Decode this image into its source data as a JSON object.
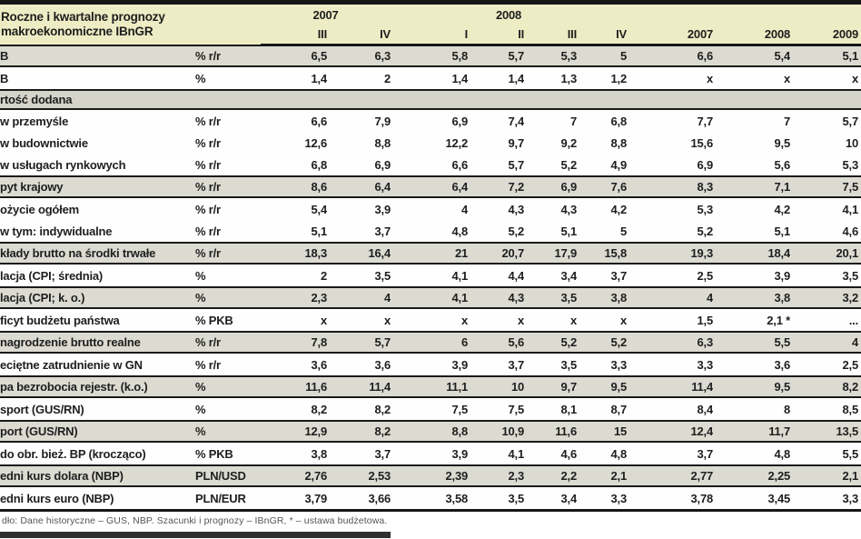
{
  "table": {
    "title_line1": "Roczne i kwartalne prognozy",
    "title_line2": "makroekonomiczne IBnGR",
    "col_groups": [
      {
        "label": "2007",
        "span": 2
      },
      {
        "label": "2008",
        "span": 4
      }
    ],
    "quarter_cols": [
      "III",
      "IV",
      "I",
      "II",
      "III",
      "IV"
    ],
    "year_cols": [
      "2007",
      "2008",
      "2009"
    ],
    "rows": [
      {
        "label": "B",
        "unit": "% r/r",
        "shade": "gray",
        "values": [
          "6,5",
          "6,3",
          "5,8",
          "5,7",
          "5,3",
          "5",
          "6,6",
          "5,4",
          "5,1"
        ]
      },
      {
        "label": "B",
        "unit": "%",
        "shade": "white",
        "values": [
          "1,4",
          "2",
          "1,4",
          "1,4",
          "1,3",
          "1,2",
          "x",
          "x",
          "x"
        ]
      },
      {
        "label": "rtość dodana",
        "type": "section"
      },
      {
        "label": "w przemyśle",
        "unit": "% r/r",
        "shade": "white",
        "values": [
          "6,6",
          "7,9",
          "6,9",
          "7,4",
          "7",
          "6,8",
          "7,7",
          "7",
          "5,7"
        ]
      },
      {
        "label": "w budownictwie",
        "unit": "% r/r",
        "shade": "white",
        "values": [
          "12,6",
          "8,8",
          "12,2",
          "9,7",
          "9,2",
          "8,8",
          "15,6",
          "9,5",
          "10"
        ]
      },
      {
        "label": "w usługach rynkowych",
        "unit": "% r/r",
        "shade": "white",
        "values": [
          "6,8",
          "6,9",
          "6,6",
          "5,7",
          "5,2",
          "4,9",
          "6,9",
          "5,6",
          "5,3"
        ]
      },
      {
        "label": "pyt krajowy",
        "unit": "% r/r",
        "shade": "gray",
        "values": [
          "8,6",
          "6,4",
          "6,4",
          "7,2",
          "6,9",
          "7,6",
          "8,3",
          "7,1",
          "7,5"
        ]
      },
      {
        "label": "ożycie ogółem",
        "unit": "% r/r",
        "shade": "white",
        "values": [
          "5,4",
          "3,9",
          "4",
          "4,3",
          "4,3",
          "4,2",
          "5,3",
          "4,2",
          "4,1"
        ]
      },
      {
        "label": "w tym: indywidualne",
        "unit": "% r/r",
        "shade": "white",
        "values": [
          "5,1",
          "3,7",
          "4,8",
          "5,2",
          "5,1",
          "5",
          "5,2",
          "5,1",
          "4,6"
        ]
      },
      {
        "label": "kłady brutto na środki trwałe",
        "unit": "% r/r",
        "shade": "gray",
        "values": [
          "18,3",
          "16,4",
          "21",
          "20,7",
          "17,9",
          "15,8",
          "19,3",
          "18,4",
          "20,1"
        ]
      },
      {
        "label": "lacja (CPI; średnia)",
        "unit": "%",
        "shade": "white",
        "values": [
          "2",
          "3,5",
          "4,1",
          "4,4",
          "3,4",
          "3,7",
          "2,5",
          "3,9",
          "3,5"
        ]
      },
      {
        "label": "lacja (CPI; k. o.)",
        "unit": "%",
        "shade": "gray",
        "values": [
          "2,3",
          "4",
          "4,1",
          "4,3",
          "3,5",
          "3,8",
          "4",
          "3,8",
          "3,2"
        ]
      },
      {
        "label": "ficyt budżetu państwa",
        "unit": "% PKB",
        "shade": "white",
        "values": [
          "x",
          "x",
          "x",
          "x",
          "x",
          "x",
          "1,5",
          "2,1 *",
          "..."
        ]
      },
      {
        "label": "nagrodzenie brutto realne",
        "unit": "% r/r",
        "shade": "gray",
        "values": [
          "7,8",
          "5,7",
          "6",
          "5,6",
          "5,2",
          "5,2",
          "6,3",
          "5,5",
          "4"
        ]
      },
      {
        "label": "eciętne zatrudnienie w GN",
        "unit": "% r/r",
        "shade": "white",
        "values": [
          "3,6",
          "3,6",
          "3,9",
          "3,7",
          "3,5",
          "3,3",
          "3,3",
          "3,6",
          "2,5"
        ]
      },
      {
        "label": "pa bezrobocia rejestr. (k.o.)",
        "unit": "%",
        "shade": "gray",
        "values": [
          "11,6",
          "11,4",
          "11,1",
          "10",
          "9,7",
          "9,5",
          "11,4",
          "9,5",
          "8,2"
        ]
      },
      {
        "label": "sport (GUS/RN)",
        "unit": "%",
        "shade": "white",
        "values": [
          "8,2",
          "8,2",
          "7,5",
          "7,5",
          "8,1",
          "8,7",
          "8,4",
          "8",
          "8,5"
        ]
      },
      {
        "label": "port (GUS/RN)",
        "unit": "%",
        "shade": "gray",
        "values": [
          "12,9",
          "8,2",
          "8,8",
          "10,9",
          "11,6",
          "15",
          "12,4",
          "11,7",
          "13,5"
        ]
      },
      {
        "label": "do obr. bież. BP (krocząco)",
        "unit": "% PKB",
        "shade": "white",
        "values": [
          "3,8",
          "3,7",
          "3,9",
          "4,1",
          "4,6",
          "4,8",
          "3,7",
          "4,8",
          "5,5"
        ]
      },
      {
        "label": "edni kurs dolara (NBP)",
        "unit": "PLN/USD",
        "shade": "gray",
        "values": [
          "2,76",
          "2,53",
          "2,39",
          "2,3",
          "2,2",
          "2,1",
          "2,77",
          "2,25",
          "2,1"
        ]
      },
      {
        "label": "edni kurs euro (NBP)",
        "unit": "PLN/EUR",
        "shade": "white",
        "values": [
          "3,79",
          "3,66",
          "3,58",
          "3,5",
          "3,4",
          "3,3",
          "3,78",
          "3,45",
          "3,3"
        ]
      }
    ],
    "footer": "dło: Dane historyczne – GUS, NBP. Szacunki i prognozy – IBnGR, * – ustawa budżetowa.",
    "colors": {
      "header_bg": "#eeecc4",
      "shaded_row_bg": "#dcdbd1",
      "section_row_bg": "#d5d4ca",
      "rule_line": "#161616"
    }
  }
}
